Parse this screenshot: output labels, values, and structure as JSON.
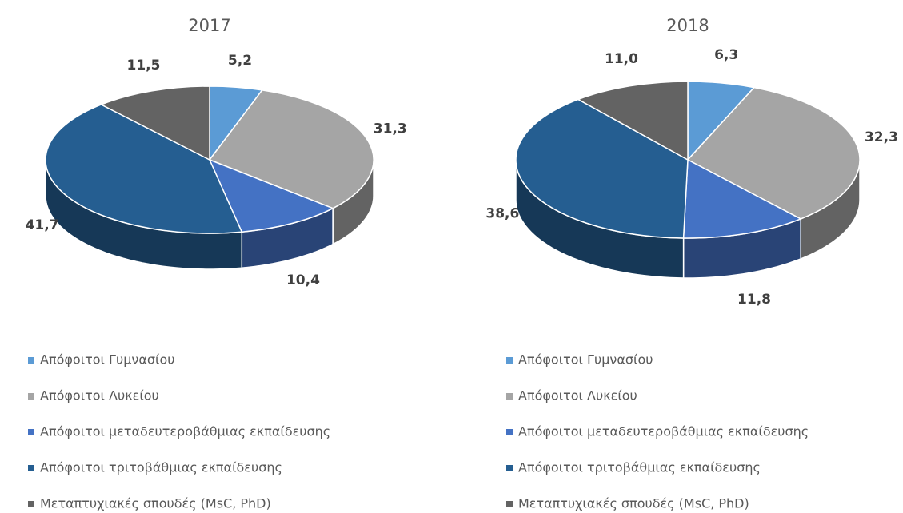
{
  "chart_data": [
    {
      "type": "pie",
      "title": "2017",
      "categories": [
        "Απόφοιτοι Γυμνασίου",
        "Απόφοιτοι Λυκείου",
        "Απόφοιτοι μεταδευτεροβάθμιας εκπαίδευσης",
        "Απόφοιτοι τριτοβάθμιας εκπαίδευσης",
        "Μεταπτυχιακές σπουδές (MsC, PhD)"
      ],
      "values": [
        5.2,
        31.3,
        10.4,
        41.7,
        11.5
      ],
      "value_labels": [
        "5,2",
        "31,3",
        "10,4",
        "41,7",
        "11,5"
      ],
      "colors": [
        "#5b9bd5",
        "#a5a5a5",
        "#4472c4",
        "#255e91",
        "#636363"
      ],
      "legend": "bottom"
    },
    {
      "type": "pie",
      "title": "2018",
      "categories": [
        "Απόφοιτοι Γυμνασίου",
        "Απόφοιτοι Λυκείου",
        "Απόφοιτοι μεταδευτεροβάθμιας εκπαίδευσης",
        "Απόφοιτοι τριτοβάθμιας εκπαίδευσης",
        "Μεταπτυχιακές σπουδές (MsC, PhD)"
      ],
      "values": [
        6.3,
        32.3,
        11.8,
        38.6,
        11.0
      ],
      "value_labels": [
        "6,3",
        "32,3",
        "11,8",
        "38,6",
        "11,0"
      ],
      "colors": [
        "#5b9bd5",
        "#a5a5a5",
        "#4472c4",
        "#255e91",
        "#636363"
      ],
      "legend": "bottom"
    }
  ]
}
